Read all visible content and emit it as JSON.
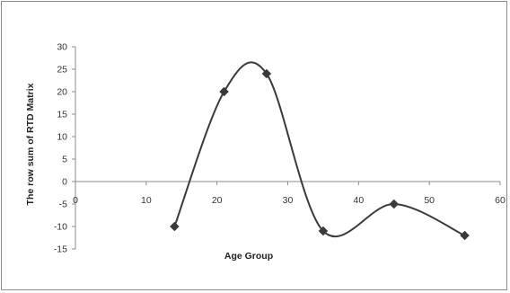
{
  "chart_data": {
    "type": "line",
    "title": "",
    "xlabel": "Age Group",
    "ylabel": "The row sum of RTD Matrix",
    "xlim": [
      0,
      60
    ],
    "ylim": [
      -15,
      30
    ],
    "x_ticks": [
      0,
      10,
      20,
      30,
      40,
      50,
      60
    ],
    "y_ticks": [
      30,
      25,
      20,
      15,
      10,
      5,
      0,
      -5,
      -10,
      -15
    ],
    "smoothed": true,
    "marker": "diamond",
    "grid": false,
    "legend": "none",
    "series": [
      {
        "color": "#3a3a3a",
        "x": [
          14,
          21,
          27,
          35,
          45,
          55
        ],
        "y": [
          -10,
          20,
          24,
          -11,
          -5,
          -12
        ]
      }
    ]
  }
}
